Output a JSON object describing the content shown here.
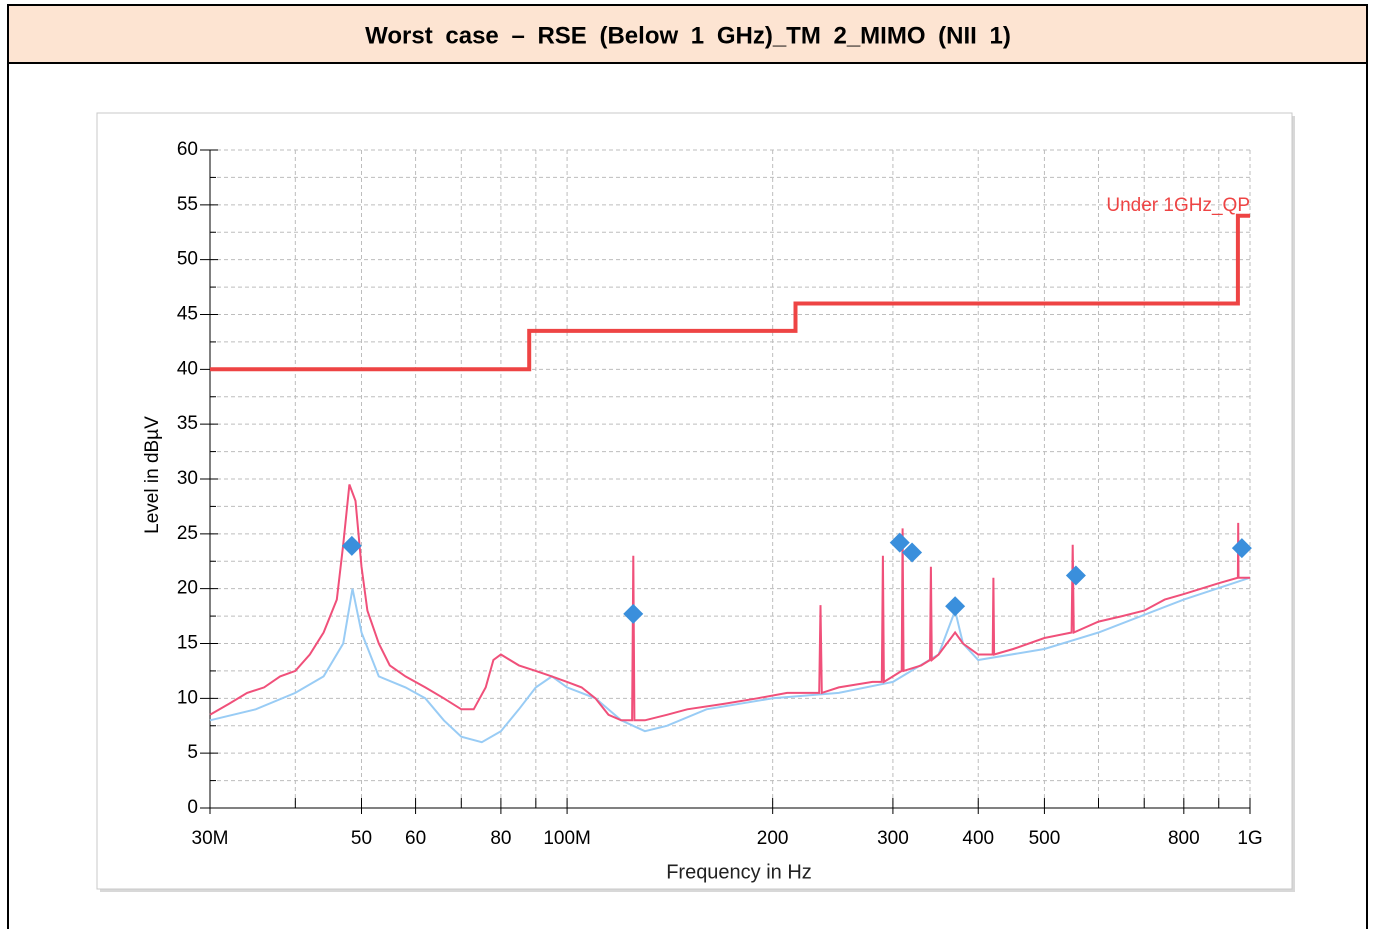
{
  "header": {
    "title": "Worst case – RSE (Below 1 GHz)_TM 2_MIMO (NII 1)"
  },
  "chart_data": {
    "type": "line",
    "xlabel": "Frequency in Hz",
    "ylabel": "Level in dBµV",
    "xscale": "log",
    "xlim": [
      30000000.0,
      1000000000.0
    ],
    "ylim": [
      0,
      60
    ],
    "xticks": [
      {
        "value": 30000000.0,
        "label": "30M"
      },
      {
        "value": 50000000.0,
        "label": "50"
      },
      {
        "value": 60000000.0,
        "label": "60"
      },
      {
        "value": 80000000.0,
        "label": "80"
      },
      {
        "value": 100000000.0,
        "label": "100M"
      },
      {
        "value": 200000000.0,
        "label": "200"
      },
      {
        "value": 300000000.0,
        "label": "300"
      },
      {
        "value": 400000000.0,
        "label": "400"
      },
      {
        "value": 500000000.0,
        "label": "500"
      },
      {
        "value": 800000000.0,
        "label": "800"
      },
      {
        "value": 1000000000.0,
        "label": "1G"
      }
    ],
    "xminor_ticks": [
      40000000.0,
      70000000.0,
      90000000.0,
      600000000.0,
      700000000.0,
      900000000.0
    ],
    "yticks": [
      0,
      5,
      10,
      15,
      20,
      25,
      30,
      35,
      40,
      45,
      50,
      55,
      60
    ],
    "yminor_ticks": [
      2.5,
      7.5,
      12.5,
      17.5,
      22.5,
      27.5,
      32.5,
      37.5,
      42.5,
      47.5,
      52.5,
      57.5
    ],
    "grid": true,
    "series": [
      {
        "color": "#99ccf5",
        "x": [
          30000000.0,
          35000000.0,
          40000000.0,
          44000000.0,
          47000000.0,
          48500000.0,
          50000000.0,
          53000000.0,
          58000000.0,
          62000000.0,
          66000000.0,
          70000000.0,
          75000000.0,
          80000000.0,
          85000000.0,
          90000000.0,
          95000000.0,
          100000000.0,
          110000000.0,
          120000000.0,
          130000000.0,
          140000000.0,
          160000000.0,
          200000000.0,
          250000000.0,
          300000000.0,
          350000000.0,
          370000000.0,
          380000000.0,
          400000000.0,
          500000000.0,
          600000000.0,
          800000000.0,
          1000000000.0
        ],
        "values": [
          8,
          9,
          10.5,
          12,
          15,
          20,
          16,
          12,
          11,
          10,
          8,
          6.5,
          6,
          7,
          9,
          11,
          12,
          11,
          10,
          8,
          7,
          7.5,
          9,
          10,
          10.5,
          11.5,
          14,
          18,
          15,
          13.5,
          14.5,
          16,
          19,
          21
        ]
      },
      {
        "color": "#f0507a",
        "x": [
          30000000.0,
          32000000.0,
          34000000.0,
          36000000.0,
          38000000.0,
          40000000.0,
          42000000.0,
          44000000.0,
          46000000.0,
          47000000.0,
          48000000.0,
          49000000.0,
          50000000.0,
          51000000.0,
          53000000.0,
          55000000.0,
          58000000.0,
          62000000.0,
          66000000.0,
          70000000.0,
          73000000.0,
          76000000.0,
          78000000.0,
          80000000.0,
          85000000.0,
          90000000.0,
          95000000.0,
          100000000.0,
          105000000.0,
          110000000.0,
          115000000.0,
          120000000.0,
          124500000.0,
          125000000.0,
          125500000.0,
          130000000.0,
          140000000.0,
          150000000.0,
          170000000.0,
          190000000.0,
          210000000.0,
          234000000.0,
          235000000.0,
          236000000.0,
          250000000.0,
          280000000.0,
          289000000.0,
          290000000.0,
          291000000.0,
          300000000.0,
          309000000.0,
          310000000.0,
          311000000.0,
          330000000.0,
          340000000.0,
          341000000.0,
          342000000.0,
          350000000.0,
          370000000.0,
          380000000.0,
          400000000.0,
          420000000.0,
          421000000.0,
          422000000.0,
          450000000.0,
          500000000.0,
          548000000.0,
          550000000.0,
          552000000.0,
          600000000.0,
          650000000.0,
          700000000.0,
          750000000.0,
          800000000.0,
          900000000.0,
          960000000.0,
          961000000.0,
          962000000.0,
          1000000000.0
        ],
        "values": [
          8.5,
          9.5,
          10.5,
          11,
          12,
          12.5,
          14,
          16,
          19,
          24,
          29.5,
          28,
          22,
          18,
          15,
          13,
          12,
          11,
          10,
          9,
          9,
          11,
          13.5,
          14,
          13,
          12.5,
          12,
          11.5,
          11,
          10,
          8.5,
          8,
          8,
          23,
          8,
          8,
          8.5,
          9,
          9.5,
          10,
          10.5,
          10.5,
          18.5,
          10.5,
          11,
          11.5,
          11.5,
          23,
          11.5,
          12,
          12.5,
          25.5,
          12.5,
          13,
          13.5,
          22,
          13.5,
          14,
          16,
          15,
          14,
          14,
          21,
          14,
          14.5,
          15.5,
          16,
          24,
          16,
          17,
          17.5,
          18,
          19,
          19.5,
          20.5,
          21,
          26,
          21,
          21
        ]
      },
      {
        "name": "Under 1GHz_QP",
        "color": "#ee4444",
        "x": [
          30000000.0,
          88000000.0,
          88000000.0,
          216000000.0,
          216000000.0,
          960000000.0,
          960000000.0,
          1000000000.0
        ],
        "values": [
          40,
          40,
          43.5,
          43.5,
          46,
          46,
          54,
          54
        ]
      },
      {
        "color": "#3a8fdc",
        "marker": "diamond",
        "x": [
          48400000.0,
          125000000.0,
          307000000.0,
          320000000.0,
          370000000.0,
          556000000.0,
          973000000.0
        ],
        "values": [
          23.9,
          17.7,
          24.2,
          23.3,
          18.4,
          21.2,
          23.7
        ]
      }
    ]
  }
}
